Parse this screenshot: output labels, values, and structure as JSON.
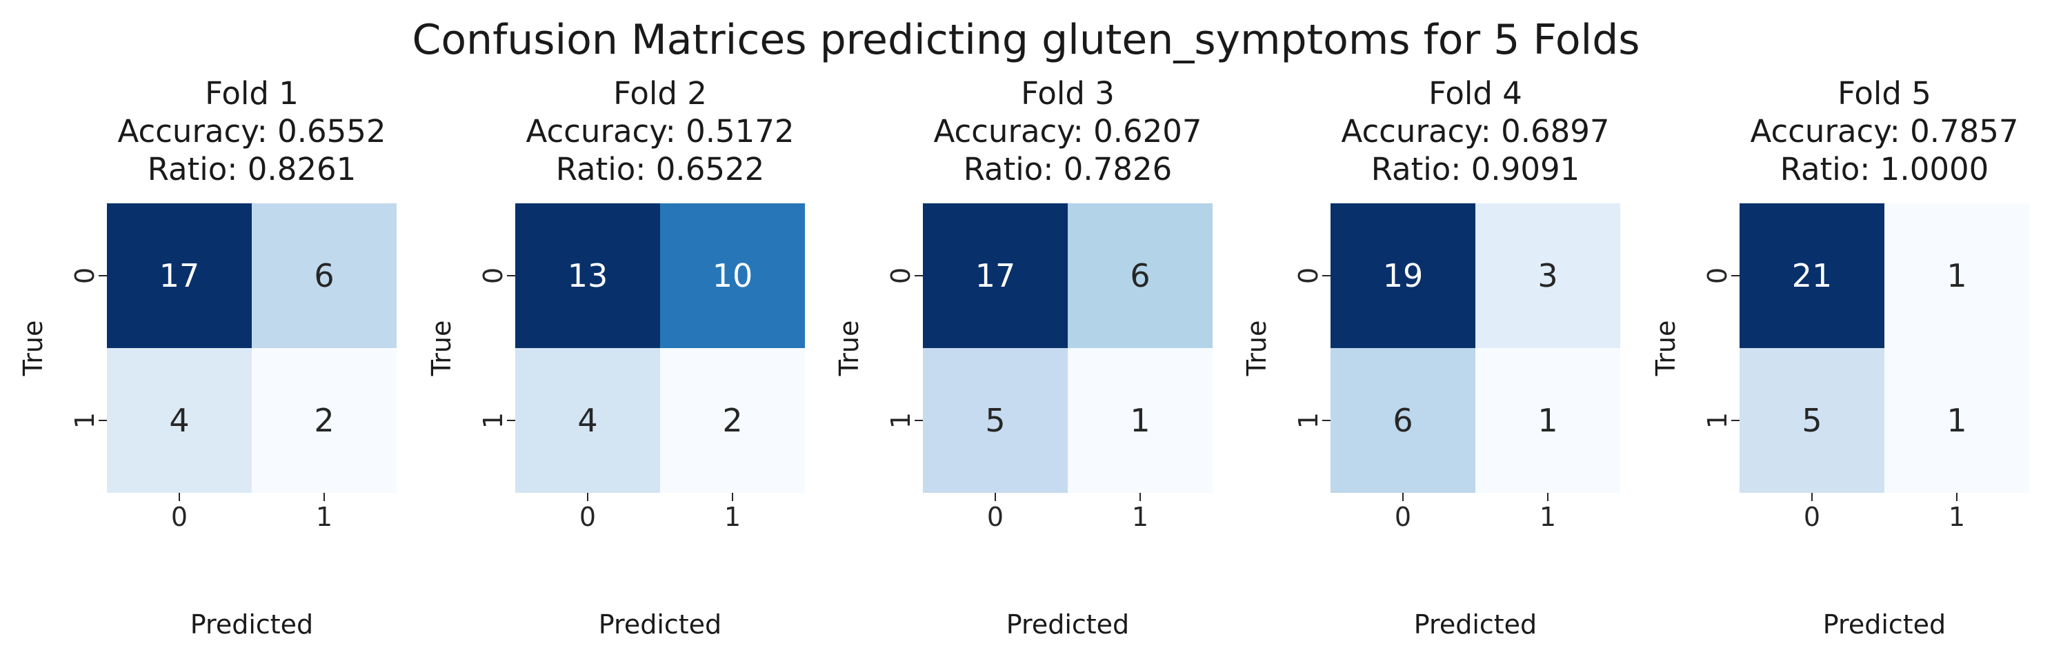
{
  "figure_title": "Confusion Matrices predicting gluten_symptoms for 5 Folds",
  "chart_data": [
    {
      "type": "heatmap",
      "title": "Fold 1",
      "subtitle_lines": [
        "Accuracy: 0.6552",
        "Ratio: 0.8261"
      ],
      "xlabel": "Predicted",
      "ylabel": "True",
      "x_tick_labels": [
        "0",
        "1"
      ],
      "y_tick_labels": [
        "0",
        "1"
      ],
      "matrix": [
        [
          17,
          6
        ],
        [
          4,
          2
        ]
      ]
    },
    {
      "type": "heatmap",
      "title": "Fold 2",
      "subtitle_lines": [
        "Accuracy: 0.5172",
        "Ratio: 0.6522"
      ],
      "xlabel": "Predicted",
      "ylabel": "True",
      "x_tick_labels": [
        "0",
        "1"
      ],
      "y_tick_labels": [
        "0",
        "1"
      ],
      "matrix": [
        [
          13,
          10
        ],
        [
          4,
          2
        ]
      ]
    },
    {
      "type": "heatmap",
      "title": "Fold 3",
      "subtitle_lines": [
        "Accuracy: 0.6207",
        "Ratio: 0.7826"
      ],
      "xlabel": "Predicted",
      "ylabel": "True",
      "x_tick_labels": [
        "0",
        "1"
      ],
      "y_tick_labels": [
        "0",
        "1"
      ],
      "matrix": [
        [
          17,
          6
        ],
        [
          5,
          1
        ]
      ]
    },
    {
      "type": "heatmap",
      "title": "Fold 4",
      "subtitle_lines": [
        "Accuracy: 0.6897",
        "Ratio: 0.9091"
      ],
      "xlabel": "Predicted",
      "ylabel": "True",
      "x_tick_labels": [
        "0",
        "1"
      ],
      "y_tick_labels": [
        "0",
        "1"
      ],
      "matrix": [
        [
          19,
          3
        ],
        [
          6,
          1
        ]
      ]
    },
    {
      "type": "heatmap",
      "title": "Fold 5",
      "subtitle_lines": [
        "Accuracy: 0.7857",
        "Ratio: 1.0000"
      ],
      "xlabel": "Predicted",
      "ylabel": "True",
      "x_tick_labels": [
        "0",
        "1"
      ],
      "y_tick_labels": [
        "0",
        "1"
      ],
      "matrix": [
        [
          21,
          1
        ],
        [
          5,
          1
        ]
      ]
    }
  ],
  "colormap": "Blues",
  "colors": {
    "light": "#f7fbff",
    "mid": "#6baed6",
    "dark": "#08306b",
    "text_on_dark": "#ffffff",
    "text_on_light": "#262626"
  }
}
